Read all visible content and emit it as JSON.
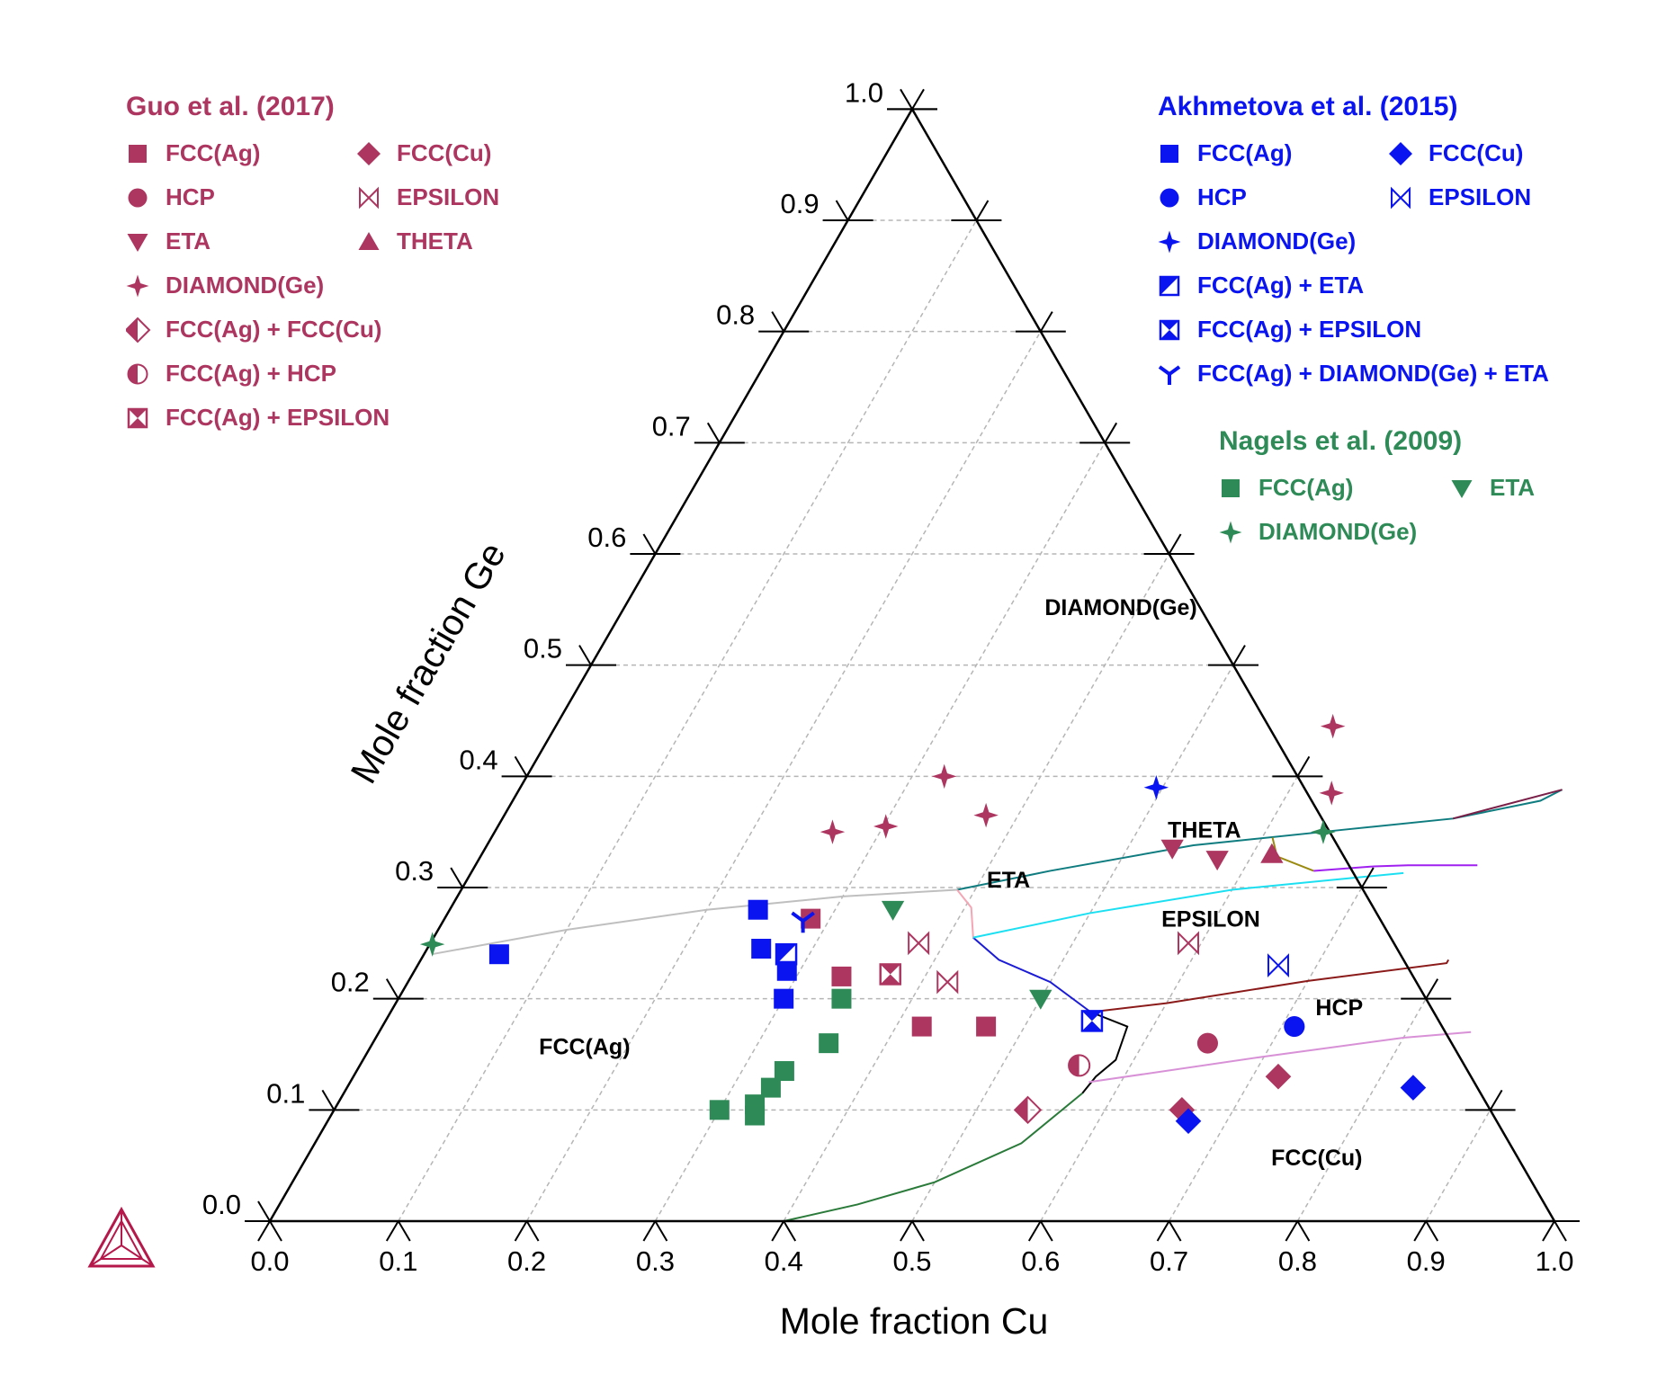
{
  "chart_data": {
    "type": "scatter",
    "subtype": "ternary",
    "xlabel": "Mole fraction Cu",
    "ylabel": "Mole fraction Ge",
    "bottom_ticks": [
      "0.0",
      "0.1",
      "0.2",
      "0.3",
      "0.4",
      "0.5",
      "0.6",
      "0.7",
      "0.8",
      "0.9",
      "1.0"
    ],
    "left_ticks": [
      "0.0",
      "0.1",
      "0.2",
      "0.3",
      "0.4",
      "0.5",
      "0.6",
      "0.7",
      "0.8",
      "0.9",
      "1.0"
    ],
    "grid": true,
    "colors": {
      "guo": "#ad3660",
      "akh": "#0a14f0",
      "nagels": "#2e8b57",
      "axis": "#000000",
      "grid": "#b5b5b5",
      "logo": "#b5184a"
    },
    "region_labels": [
      {
        "text": "DIAMOND(Ge)",
        "cu": 0.39,
        "ge": 0.545
      },
      {
        "text": "ETA",
        "cu": 0.425,
        "ge": 0.3
      },
      {
        "text": "THETA",
        "cu": 0.555,
        "ge": 0.345
      },
      {
        "text": "EPSILON",
        "cu": 0.6,
        "ge": 0.265
      },
      {
        "text": "HCP",
        "cu": 0.74,
        "ge": 0.185
      },
      {
        "text": "FCC(Ag)",
        "cu": 0.17,
        "ge": 0.15
      },
      {
        "text": "FCC(Cu)",
        "cu": 0.79,
        "ge": 0.05
      }
    ],
    "boundaries": [
      {
        "color": "#bfbfbf",
        "points": [
          [
            0.006,
            0.24
          ],
          [
            0.1,
            0.262
          ],
          [
            0.2,
            0.28
          ],
          [
            0.3,
            0.292
          ],
          [
            0.386,
            0.298
          ]
        ]
      },
      {
        "color": "#0f7c80",
        "points": [
          [
            0.386,
            0.298
          ],
          [
            0.45,
            0.315
          ],
          [
            0.55,
            0.338
          ],
          [
            0.66,
            0.352
          ],
          [
            0.74,
            0.362
          ],
          [
            0.8,
            0.378
          ],
          [
            0.812,
            0.388
          ]
        ]
      },
      {
        "color": "#7a2048",
        "points": [
          [
            0.74,
            0.362
          ],
          [
            0.812,
            0.388
          ]
        ]
      },
      {
        "color": "#f4a6b4",
        "points": [
          [
            0.386,
            0.298
          ],
          [
            0.405,
            0.282
          ],
          [
            0.42,
            0.255
          ]
        ]
      },
      {
        "color": "#1b1bd6",
        "points": [
          [
            0.42,
            0.255
          ],
          [
            0.45,
            0.235
          ],
          [
            0.5,
            0.215
          ],
          [
            0.545,
            0.188
          ]
        ]
      },
      {
        "color": "#1ce0f2",
        "points": [
          [
            0.42,
            0.255
          ],
          [
            0.5,
            0.277
          ],
          [
            0.6,
            0.298
          ],
          [
            0.7,
            0.31
          ],
          [
            0.726,
            0.313
          ]
        ]
      },
      {
        "color": "#9a8a10",
        "points": [
          [
            0.608,
            0.345
          ],
          [
            0.62,
            0.328
          ],
          [
            0.655,
            0.315
          ]
        ]
      },
      {
        "color": "#a020f0",
        "points": [
          [
            0.655,
            0.315
          ],
          [
            0.7,
            0.319
          ],
          [
            0.726,
            0.32
          ],
          [
            0.78,
            0.32
          ]
        ]
      },
      {
        "color": "#000000",
        "points": [
          [
            0.545,
            0.188
          ],
          [
            0.58,
            0.175
          ],
          [
            0.586,
            0.145
          ],
          [
            0.578,
            0.13
          ],
          [
            0.575,
            0.115
          ]
        ]
      },
      {
        "color": "#8b1a1a",
        "points": [
          [
            0.545,
            0.188
          ],
          [
            0.6,
            0.196
          ],
          [
            0.7,
            0.216
          ],
          [
            0.8,
            0.232
          ],
          [
            0.8,
            0.235
          ]
        ]
      },
      {
        "color": "#d891d6",
        "points": [
          [
            0.575,
            0.125
          ],
          [
            0.7,
            0.148
          ],
          [
            0.8,
            0.165
          ],
          [
            0.85,
            0.17
          ]
        ]
      },
      {
        "color": "#2a7a3a",
        "points": [
          [
            0.575,
            0.115
          ],
          [
            0.55,
            0.07
          ],
          [
            0.5,
            0.035
          ],
          [
            0.45,
            0.015
          ],
          [
            0.4,
            0.0
          ]
        ]
      }
    ],
    "series": [
      {
        "name": "Guo et al. (2017) FCC(Ag)",
        "group": "guo",
        "marker": "square",
        "points": [
          [
            0.285,
            0.272
          ],
          [
            0.335,
            0.22
          ],
          [
            0.42,
            0.175
          ],
          [
            0.47,
            0.175
          ]
        ]
      },
      {
        "name": "Guo et al. (2017) FCC(Cu)",
        "group": "guo",
        "marker": "diamond",
        "points": [
          [
            0.66,
            0.1
          ],
          [
            0.72,
            0.13
          ]
        ]
      },
      {
        "name": "Guo et al. (2017) HCP",
        "group": "guo",
        "marker": "circle",
        "points": [
          [
            0.65,
            0.16
          ]
        ]
      },
      {
        "name": "Guo et al. (2017) EPSILON",
        "group": "guo",
        "marker": "bowtie",
        "points": [
          [
            0.38,
            0.25
          ],
          [
            0.42,
            0.215
          ],
          [
            0.59,
            0.25
          ]
        ]
      },
      {
        "name": "Guo et al. (2017) ETA",
        "group": "guo",
        "marker": "tri-down",
        "points": [
          [
            0.535,
            0.335
          ],
          [
            0.575,
            0.325
          ]
        ]
      },
      {
        "name": "Guo et al. (2017) THETA",
        "group": "guo",
        "marker": "tri-up",
        "points": [
          [
            0.615,
            0.33
          ]
        ]
      },
      {
        "name": "Guo et al. (2017) DIAMOND(Ge)",
        "group": "guo",
        "marker": "star4",
        "points": [
          [
            0.263,
            0.35
          ],
          [
            0.302,
            0.355
          ],
          [
            0.325,
            0.4
          ],
          [
            0.375,
            0.365
          ],
          [
            0.605,
            0.445
          ],
          [
            0.634,
            0.385
          ]
        ]
      },
      {
        "name": "Guo et al. (2017) FCC(Ag) + FCC(Cu)",
        "group": "guo",
        "marker": "half-diamond",
        "points": [
          [
            0.54,
            0.1
          ]
        ]
      },
      {
        "name": "Guo et al. (2017) FCC(Ag) + HCP",
        "group": "guo",
        "marker": "half-circle",
        "points": [
          [
            0.56,
            0.14
          ]
        ]
      },
      {
        "name": "Guo et al. (2017) FCC(Ag) + EPSILON",
        "group": "guo",
        "marker": "boxbow",
        "points": [
          [
            0.372,
            0.222
          ]
        ]
      },
      {
        "name": "Akhmetova et al. (2015) FCC(Ag)",
        "group": "akh",
        "marker": "square",
        "points": [
          [
            0.0585,
            0.24
          ],
          [
            0.24,
            0.28
          ],
          [
            0.26,
            0.245
          ],
          [
            0.29,
            0.225
          ],
          [
            0.3,
            0.2
          ]
        ]
      },
      {
        "name": "Akhmetova et al. (2015) FCC(Cu)",
        "group": "akh",
        "marker": "diamond",
        "points": [
          [
            0.67,
            0.09
          ],
          [
            0.83,
            0.12
          ]
        ]
      },
      {
        "name": "Akhmetova et al. (2015) HCP",
        "group": "akh",
        "marker": "circle",
        "points": [
          [
            0.71,
            0.175
          ]
        ]
      },
      {
        "name": "Akhmetova et al. (2015) EPSILON",
        "group": "akh",
        "marker": "bowtie",
        "points": [
          [
            0.67,
            0.23
          ]
        ]
      },
      {
        "name": "Akhmetova et al. (2015) DIAMOND(Ge)",
        "group": "akh",
        "marker": "star4",
        "points": [
          [
            0.495,
            0.39
          ]
        ]
      },
      {
        "name": "Akhmetova et al. (2015) FCC(Ag) + ETA",
        "group": "akh",
        "marker": "half-square",
        "points": [
          [
            0.282,
            0.24
          ]
        ]
      },
      {
        "name": "Akhmetova et al. (2015) FCC(Ag) + EPSILON",
        "group": "akh",
        "marker": "boxbow",
        "points": [
          [
            0.55,
            0.18
          ]
        ]
      },
      {
        "name": "Akhmetova et al. (2015) FCC(Ag) + DIAMOND(Ge) + ETA",
        "group": "akh",
        "marker": "ystar",
        "points": [
          [
            0.28,
            0.27
          ]
        ]
      },
      {
        "name": "Nagels et al. (2009) FCC(Ag)",
        "group": "nagels",
        "marker": "square",
        "points": [
          [
            0.3,
            0.1
          ],
          [
            0.325,
            0.105
          ],
          [
            0.33,
            0.12
          ],
          [
            0.33,
            0.095
          ],
          [
            0.333,
            0.135
          ],
          [
            0.355,
            0.16
          ],
          [
            0.345,
            0.2
          ]
        ]
      },
      {
        "name": "Nagels et al. (2009) ETA",
        "group": "nagels",
        "marker": "tri-down",
        "points": [
          [
            0.345,
            0.28
          ],
          [
            0.5,
            0.2
          ]
        ]
      },
      {
        "name": "Nagels et al. (2009) DIAMOND(Ge)",
        "group": "nagels",
        "marker": "star4",
        "points": [
          [
            0.002,
            0.249
          ],
          [
            0.645,
            0.35
          ]
        ]
      }
    ]
  },
  "legends": {
    "guo": {
      "title": "Guo et al. (2017)",
      "rows": [
        [
          {
            "marker": "square",
            "label": "FCC(Ag)"
          },
          {
            "marker": "diamond",
            "label": "FCC(Cu)"
          }
        ],
        [
          {
            "marker": "circle",
            "label": "HCP"
          },
          {
            "marker": "bowtie",
            "label": "EPSILON"
          }
        ],
        [
          {
            "marker": "tri-down",
            "label": "ETA"
          },
          {
            "marker": "tri-up",
            "label": "THETA"
          }
        ],
        [
          {
            "marker": "star4",
            "label": "DIAMOND(Ge)"
          }
        ],
        [
          {
            "marker": "half-diamond",
            "label": "FCC(Ag) + FCC(Cu)"
          }
        ],
        [
          {
            "marker": "half-circle",
            "label": "FCC(Ag) + HCP"
          }
        ],
        [
          {
            "marker": "boxbow",
            "label": "FCC(Ag) + EPSILON"
          }
        ]
      ]
    },
    "akh": {
      "title": "Akhmetova et al. (2015)",
      "rows": [
        [
          {
            "marker": "square",
            "label": "FCC(Ag)"
          },
          {
            "marker": "diamond",
            "label": "FCC(Cu)"
          }
        ],
        [
          {
            "marker": "circle",
            "label": "HCP"
          },
          {
            "marker": "bowtie",
            "label": "EPSILON"
          }
        ],
        [
          {
            "marker": "star4",
            "label": "DIAMOND(Ge)"
          }
        ],
        [
          {
            "marker": "half-square",
            "label": "FCC(Ag) + ETA"
          }
        ],
        [
          {
            "marker": "boxbow",
            "label": "FCC(Ag) + EPSILON"
          }
        ],
        [
          {
            "marker": "ystar",
            "label": "FCC(Ag) + DIAMOND(Ge) + ETA"
          }
        ]
      ]
    },
    "nagels": {
      "title": "Nagels et al. (2009)",
      "rows": [
        [
          {
            "marker": "square",
            "label": "FCC(Ag)"
          },
          {
            "marker": "tri-down",
            "label": "ETA"
          }
        ],
        [
          {
            "marker": "star4",
            "label": "DIAMOND(Ge)"
          }
        ]
      ]
    }
  },
  "logo": {
    "icon": "ternary-triangle-logo-icon"
  }
}
